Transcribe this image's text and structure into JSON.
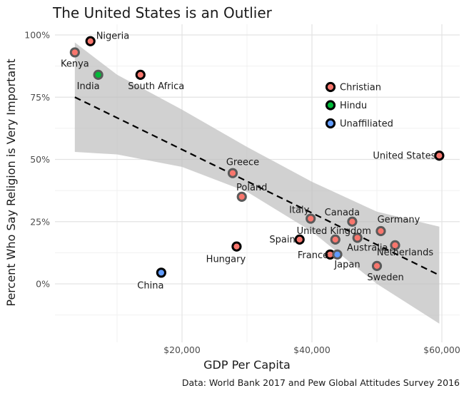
{
  "chart_data": {
    "type": "scatter",
    "title": "The United States is an Outlier",
    "xlabel": "GDP Per Capita",
    "ylabel": "Percent Who Say Religion is Very Important",
    "caption": "Data: World Bank 2017 and Pew Global Attitudes Survey 2016",
    "xlim": [
      0,
      62000
    ],
    "ylim": [
      -0.15,
      1.02
    ],
    "x_ticks": [
      {
        "value": 20000,
        "label": "$20,000"
      },
      {
        "value": 40000,
        "label": "$40,000"
      },
      {
        "value": 60000,
        "label": "$60,000"
      }
    ],
    "y_ticks": [
      {
        "value": 0,
        "label": "0%"
      },
      {
        "value": 0.25,
        "label": "25%"
      },
      {
        "value": 0.5,
        "label": "50%"
      },
      {
        "value": 0.75,
        "label": "75%"
      },
      {
        "value": 1.0,
        "label": "100%"
      }
    ],
    "grid": true,
    "legend": {
      "placement": "inside-top-right",
      "entries": [
        {
          "name": "Christian",
          "color": "#f8766d"
        },
        {
          "name": "Hindu",
          "color": "#00ba38"
        },
        {
          "name": "Unaffiliated",
          "color": "#619cff"
        }
      ]
    },
    "points": [
      {
        "label": "Nigeria",
        "x": 5900,
        "y": 0.975,
        "group": "Christian",
        "hl": true
      },
      {
        "label": "Kenya",
        "x": 3500,
        "y": 0.93,
        "group": "Christian",
        "hl": false
      },
      {
        "label": "India",
        "x": 7100,
        "y": 0.84,
        "group": "Hindu",
        "hl": false
      },
      {
        "label": "South Africa",
        "x": 13600,
        "y": 0.84,
        "group": "Christian",
        "hl": true
      },
      {
        "label": "Greece",
        "x": 27800,
        "y": 0.445,
        "group": "Christian",
        "hl": false
      },
      {
        "label": "Poland",
        "x": 29200,
        "y": 0.35,
        "group": "Christian",
        "hl": false
      },
      {
        "label": "Hungary",
        "x": 28400,
        "y": 0.15,
        "group": "Christian",
        "hl": true
      },
      {
        "label": "China",
        "x": 16800,
        "y": 0.045,
        "group": "Unaffiliated",
        "hl": true
      },
      {
        "label": "Spain",
        "x": 38100,
        "y": 0.178,
        "group": "Christian",
        "hl": true
      },
      {
        "label": "Italy",
        "x": 39800,
        "y": 0.262,
        "group": "Christian",
        "hl": false
      },
      {
        "label": "France",
        "x": 42800,
        "y": 0.118,
        "group": "Christian",
        "hl": true
      },
      {
        "label": "Japan",
        "x": 43900,
        "y": 0.118,
        "group": "Unaffiliated",
        "hl": false
      },
      {
        "label": "United Kingdom",
        "x": 43600,
        "y": 0.178,
        "group": "Christian",
        "hl": false
      },
      {
        "label": "Canada",
        "x": 46200,
        "y": 0.25,
        "group": "Christian",
        "hl": false
      },
      {
        "label": "Australia",
        "x": 47000,
        "y": 0.185,
        "group": "Christian",
        "hl": false
      },
      {
        "label": "Germany",
        "x": 50600,
        "y": 0.212,
        "group": "Christian",
        "hl": false
      },
      {
        "label": "Sweden",
        "x": 50000,
        "y": 0.072,
        "group": "Christian",
        "hl": false
      },
      {
        "label": "Netherlands",
        "x": 52800,
        "y": 0.155,
        "group": "Christian",
        "hl": false
      },
      {
        "label": "United States",
        "x": 59600,
        "y": 0.515,
        "group": "Christian",
        "hl": true
      }
    ],
    "trend": {
      "x": [
        3500,
        59600
      ],
      "y": [
        0.75,
        0.035
      ]
    },
    "band": {
      "x": [
        3500,
        10000,
        20000,
        30000,
        40000,
        50000,
        59600
      ],
      "upper": [
        0.97,
        0.84,
        0.7,
        0.55,
        0.41,
        0.29,
        0.23
      ],
      "lower": [
        0.53,
        0.52,
        0.47,
        0.37,
        0.21,
        0.0,
        -0.16
      ]
    }
  }
}
